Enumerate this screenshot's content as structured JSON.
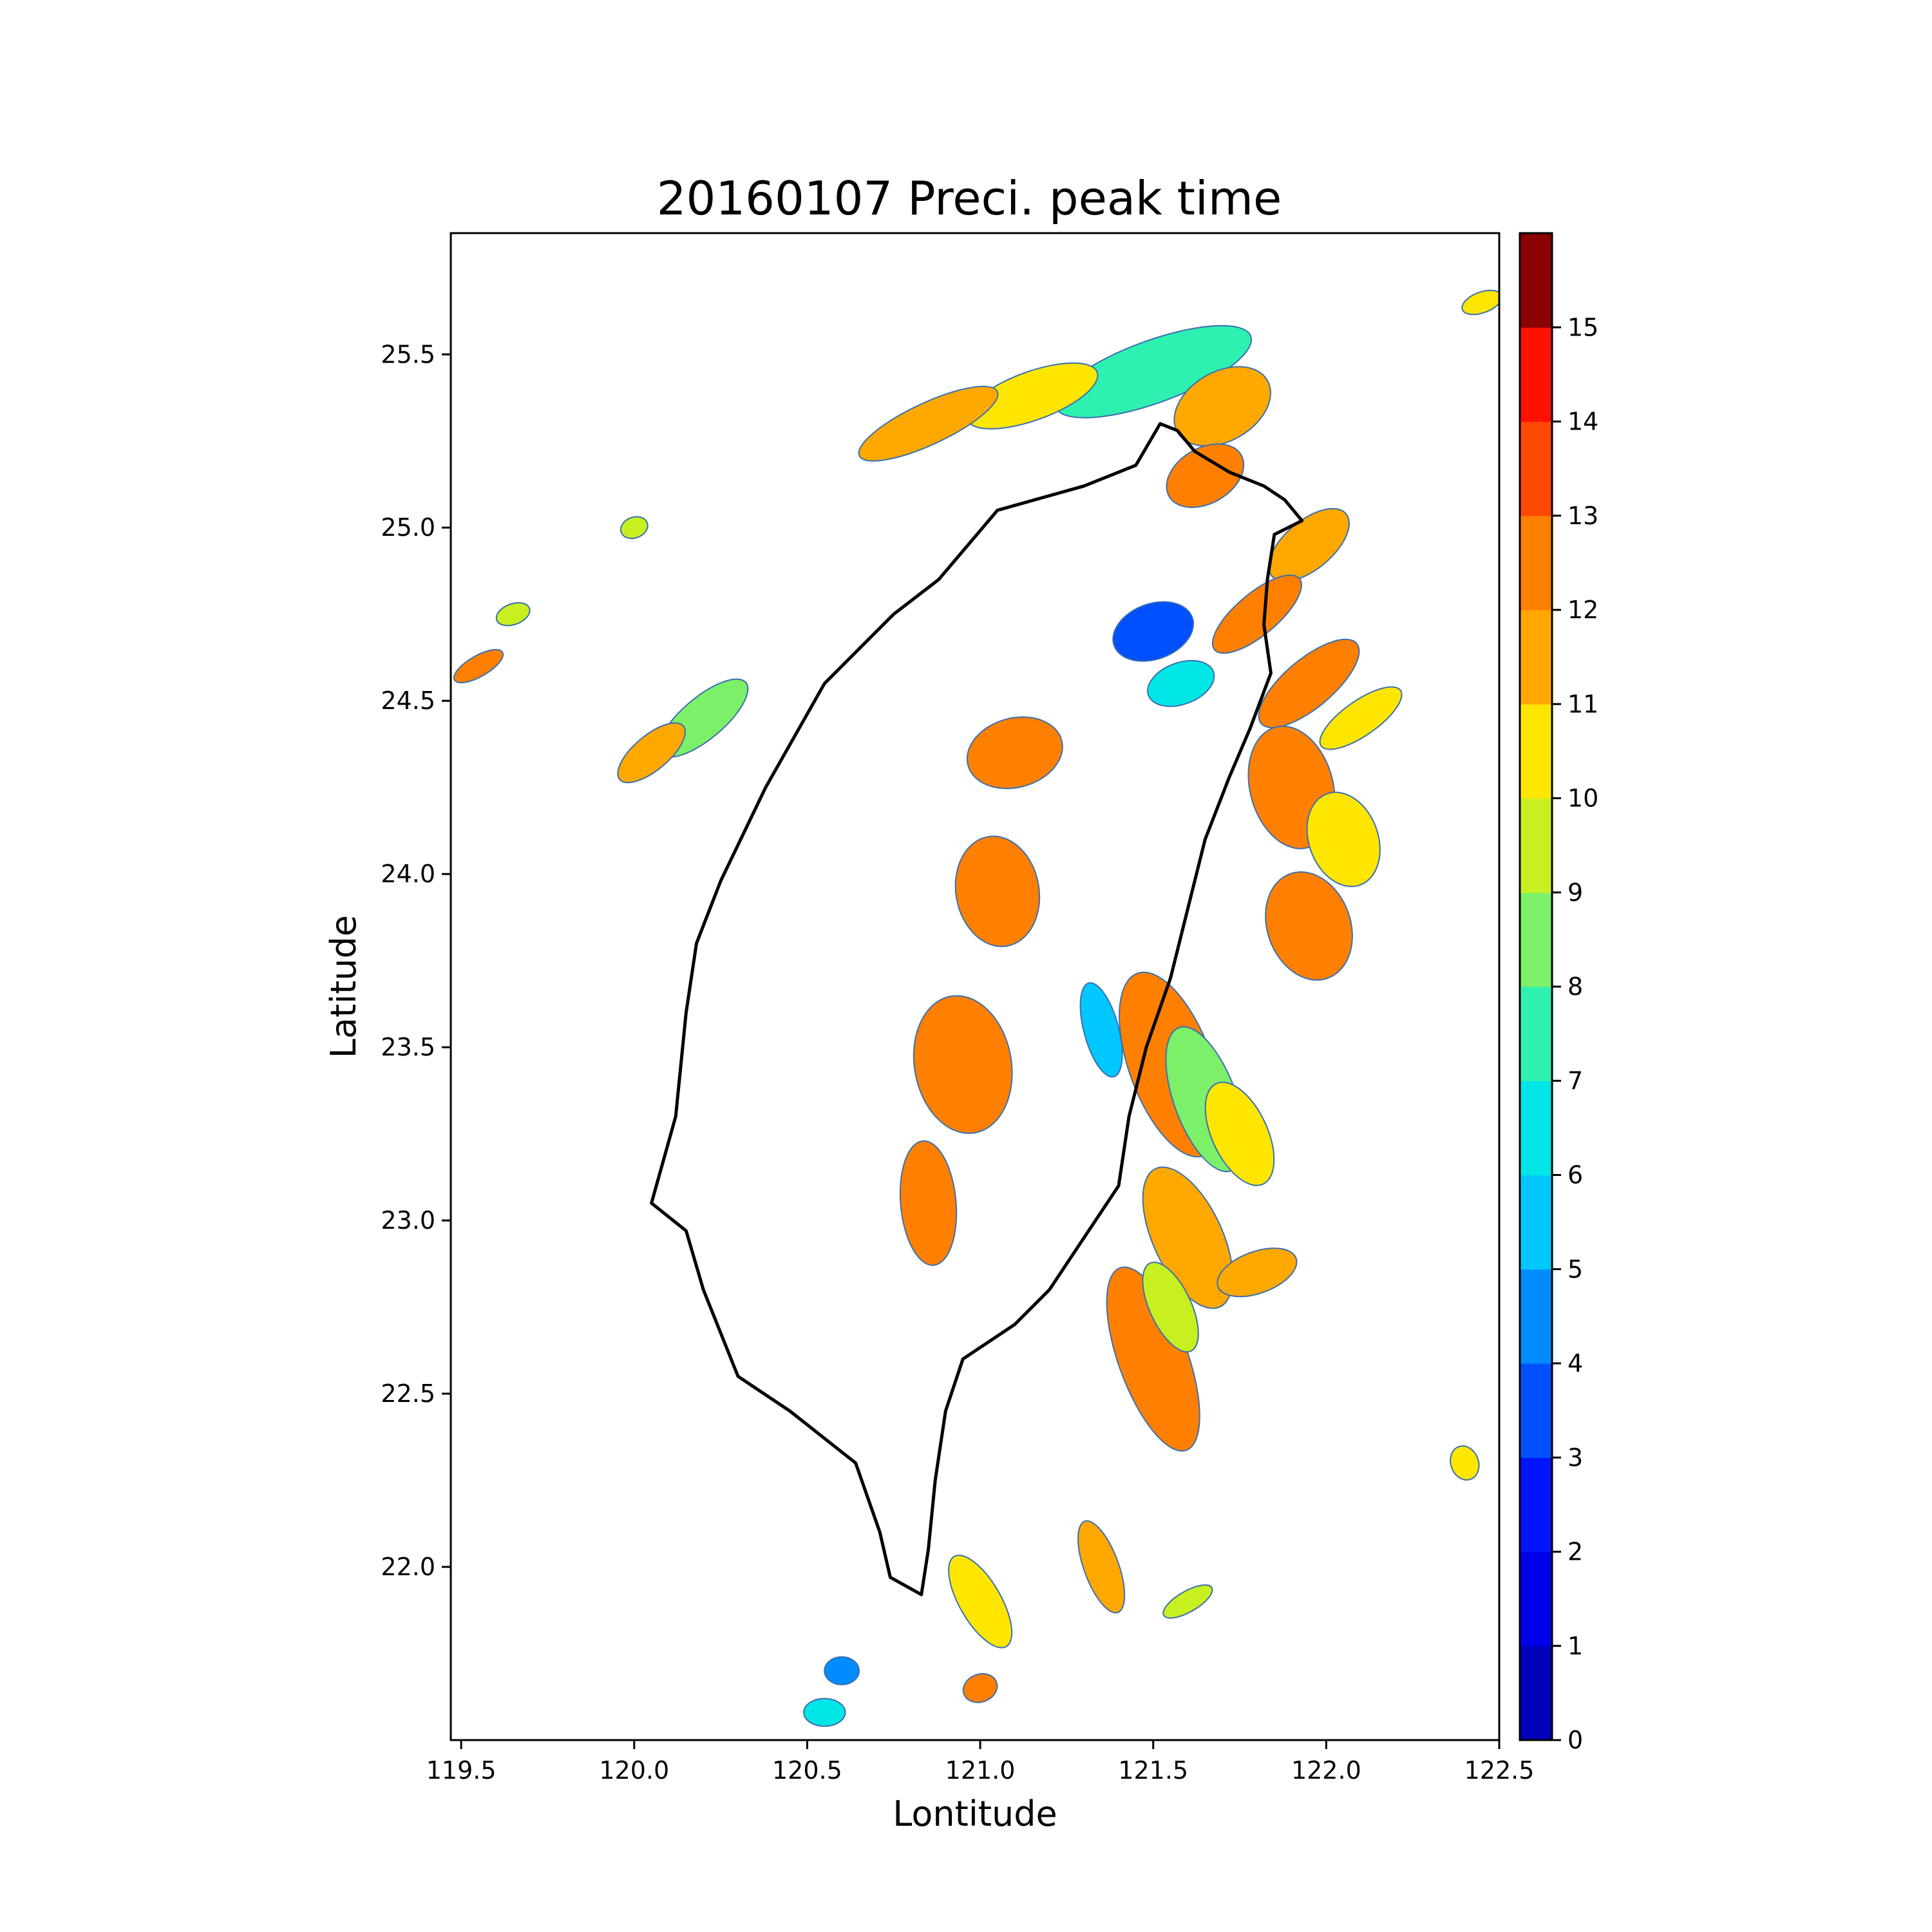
{
  "chart_data": {
    "type": "heatmap",
    "title": "20160107 Preci. peak time",
    "xlabel": "Lontitude",
    "ylabel": "Latitude",
    "xlim": [
      119.47,
      122.5
    ],
    "ylim": [
      21.5,
      25.85
    ],
    "xticks": [
      "119.5",
      "120.0",
      "120.5",
      "121.0",
      "121.5",
      "122.0",
      "122.5"
    ],
    "xtick_values": [
      119.5,
      120.0,
      120.5,
      121.0,
      121.5,
      122.0,
      122.5
    ],
    "yticks": [
      "22.0",
      "22.5",
      "23.0",
      "23.5",
      "24.0",
      "24.5",
      "25.0",
      "25.5"
    ],
    "ytick_values": [
      22.0,
      22.5,
      23.0,
      23.5,
      24.0,
      24.5,
      25.0,
      25.5
    ],
    "colorbar": {
      "range": [
        0,
        15
      ],
      "ticks": [
        "0",
        "1",
        "2",
        "3",
        "4",
        "5",
        "6",
        "7",
        "8",
        "9",
        "10",
        "11",
        "12",
        "13",
        "14",
        "15"
      ],
      "colors": [
        "#0000b8",
        "#0000e8",
        "#0014ff",
        "#0050ff",
        "#008cff",
        "#00c8ff",
        "#00e6e6",
        "#2ef0b0",
        "#7cf068",
        "#c8f020",
        "#ffe600",
        "#ffa800",
        "#ff8000",
        "#ff4800",
        "#ff1000",
        "#8b0000"
      ]
    },
    "grid": false,
    "legend": "colorbar-right",
    "regions": [
      {
        "lon": 121.5,
        "lat": 25.45,
        "rx": 0.3,
        "ry": 0.09,
        "rot": -20,
        "level": 7
      },
      {
        "lon": 121.15,
        "lat": 25.38,
        "rx": 0.2,
        "ry": 0.07,
        "rot": -20,
        "level": 10
      },
      {
        "lon": 120.85,
        "lat": 25.3,
        "rx": 0.22,
        "ry": 0.06,
        "rot": -25,
        "level": 11
      },
      {
        "lon": 121.7,
        "lat": 25.35,
        "rx": 0.15,
        "ry": 0.1,
        "rot": -30,
        "level": 11
      },
      {
        "lon": 121.65,
        "lat": 25.15,
        "rx": 0.12,
        "ry": 0.08,
        "rot": -30,
        "level": 12
      },
      {
        "lon": 121.95,
        "lat": 24.95,
        "rx": 0.14,
        "ry": 0.07,
        "rot": -40,
        "level": 11
      },
      {
        "lon": 121.8,
        "lat": 24.75,
        "rx": 0.16,
        "ry": 0.06,
        "rot": -40,
        "level": 12
      },
      {
        "lon": 121.5,
        "lat": 24.7,
        "rx": 0.12,
        "ry": 0.08,
        "rot": -20,
        "level": 3
      },
      {
        "lon": 121.58,
        "lat": 24.55,
        "rx": 0.1,
        "ry": 0.06,
        "rot": -20,
        "level": 6
      },
      {
        "lon": 121.95,
        "lat": 24.55,
        "rx": 0.18,
        "ry": 0.07,
        "rot": -40,
        "level": 12
      },
      {
        "lon": 122.1,
        "lat": 24.45,
        "rx": 0.14,
        "ry": 0.05,
        "rot": -35,
        "level": 10
      },
      {
        "lon": 121.9,
        "lat": 24.25,
        "rx": 0.12,
        "ry": 0.18,
        "rot": -15,
        "level": 12
      },
      {
        "lon": 122.05,
        "lat": 24.1,
        "rx": 0.1,
        "ry": 0.14,
        "rot": -20,
        "level": 10
      },
      {
        "lon": 121.95,
        "lat": 23.85,
        "rx": 0.12,
        "ry": 0.16,
        "rot": -20,
        "level": 12
      },
      {
        "lon": 121.55,
        "lat": 23.45,
        "rx": 0.12,
        "ry": 0.28,
        "rot": -20,
        "level": 12
      },
      {
        "lon": 121.65,
        "lat": 23.35,
        "rx": 0.09,
        "ry": 0.22,
        "rot": -20,
        "level": 8
      },
      {
        "lon": 121.75,
        "lat": 23.25,
        "rx": 0.08,
        "ry": 0.16,
        "rot": -25,
        "level": 10
      },
      {
        "lon": 121.6,
        "lat": 22.95,
        "rx": 0.1,
        "ry": 0.22,
        "rot": -25,
        "level": 11
      },
      {
        "lon": 121.5,
        "lat": 22.6,
        "rx": 0.1,
        "ry": 0.28,
        "rot": -20,
        "level": 12
      },
      {
        "lon": 121.55,
        "lat": 22.75,
        "rx": 0.06,
        "ry": 0.14,
        "rot": -25,
        "level": 9
      },
      {
        "lon": 121.8,
        "lat": 22.85,
        "rx": 0.12,
        "ry": 0.06,
        "rot": -20,
        "level": 11
      },
      {
        "lon": 120.2,
        "lat": 24.45,
        "rx": 0.16,
        "ry": 0.06,
        "rot": -40,
        "level": 8
      },
      {
        "lon": 120.05,
        "lat": 24.35,
        "rx": 0.12,
        "ry": 0.05,
        "rot": -40,
        "level": 11
      },
      {
        "lon": 121.1,
        "lat": 24.35,
        "rx": 0.14,
        "ry": 0.1,
        "rot": -15,
        "level": 12
      },
      {
        "lon": 121.05,
        "lat": 23.95,
        "rx": 0.12,
        "ry": 0.16,
        "rot": -10,
        "level": 12
      },
      {
        "lon": 120.95,
        "lat": 23.45,
        "rx": 0.14,
        "ry": 0.2,
        "rot": -10,
        "level": 12
      },
      {
        "lon": 120.85,
        "lat": 23.05,
        "rx": 0.08,
        "ry": 0.18,
        "rot": -5,
        "level": 12
      },
      {
        "lon": 121.35,
        "lat": 23.55,
        "rx": 0.05,
        "ry": 0.14,
        "rot": -15,
        "level": 5
      },
      {
        "lon": 121.35,
        "lat": 22.0,
        "rx": 0.05,
        "ry": 0.14,
        "rot": -20,
        "level": 11
      },
      {
        "lon": 121.0,
        "lat": 21.9,
        "rx": 0.06,
        "ry": 0.15,
        "rot": -30,
        "level": 10
      },
      {
        "lon": 121.6,
        "lat": 21.9,
        "rx": 0.08,
        "ry": 0.03,
        "rot": -30,
        "level": 9
      },
      {
        "lon": 120.6,
        "lat": 21.7,
        "rx": 0.05,
        "ry": 0.04,
        "rot": 0,
        "level": 4
      },
      {
        "lon": 120.55,
        "lat": 21.58,
        "rx": 0.06,
        "ry": 0.04,
        "rot": 0,
        "level": 6
      },
      {
        "lon": 121.0,
        "lat": 21.65,
        "rx": 0.05,
        "ry": 0.04,
        "rot": -20,
        "level": 12
      },
      {
        "lon": 122.45,
        "lat": 25.65,
        "rx": 0.06,
        "ry": 0.03,
        "rot": -20,
        "level": 10
      },
      {
        "lon": 122.4,
        "lat": 22.3,
        "rx": 0.04,
        "ry": 0.05,
        "rot": -20,
        "level": 10
      },
      {
        "lon": 119.55,
        "lat": 24.6,
        "rx": 0.08,
        "ry": 0.03,
        "rot": -30,
        "level": 12
      },
      {
        "lon": 120.0,
        "lat": 25.0,
        "rx": 0.04,
        "ry": 0.03,
        "rot": -20,
        "level": 9
      },
      {
        "lon": 119.65,
        "lat": 24.75,
        "rx": 0.05,
        "ry": 0.03,
        "rot": -20,
        "level": 9
      }
    ],
    "coastline": [
      [
        121.52,
        25.3
      ],
      [
        121.57,
        25.28
      ],
      [
        121.62,
        25.22
      ],
      [
        121.72,
        25.16
      ],
      [
        121.82,
        25.12
      ],
      [
        121.88,
        25.08
      ],
      [
        121.93,
        25.02
      ],
      [
        121.85,
        24.98
      ],
      [
        121.83,
        24.85
      ],
      [
        121.82,
        24.72
      ],
      [
        121.84,
        24.58
      ],
      [
        121.78,
        24.42
      ],
      [
        121.72,
        24.28
      ],
      [
        121.65,
        24.1
      ],
      [
        121.6,
        23.9
      ],
      [
        121.55,
        23.7
      ],
      [
        121.48,
        23.5
      ],
      [
        121.43,
        23.3
      ],
      [
        121.4,
        23.1
      ],
      [
        121.3,
        22.95
      ],
      [
        121.2,
        22.8
      ],
      [
        121.1,
        22.7
      ],
      [
        120.95,
        22.6
      ],
      [
        120.9,
        22.45
      ],
      [
        120.87,
        22.25
      ],
      [
        120.85,
        22.05
      ],
      [
        120.83,
        21.92
      ],
      [
        120.74,
        21.97
      ],
      [
        120.71,
        22.1
      ],
      [
        120.64,
        22.3
      ],
      [
        120.45,
        22.45
      ],
      [
        120.3,
        22.55
      ],
      [
        120.2,
        22.8
      ],
      [
        120.15,
        22.97
      ],
      [
        120.05,
        23.05
      ],
      [
        120.12,
        23.3
      ],
      [
        120.15,
        23.6
      ],
      [
        120.18,
        23.8
      ],
      [
        120.25,
        23.98
      ],
      [
        120.38,
        24.25
      ],
      [
        120.55,
        24.55
      ],
      [
        120.75,
        24.75
      ],
      [
        120.88,
        24.85
      ],
      [
        121.05,
        25.05
      ],
      [
        121.3,
        25.12
      ],
      [
        121.45,
        25.18
      ],
      [
        121.52,
        25.3
      ]
    ]
  }
}
